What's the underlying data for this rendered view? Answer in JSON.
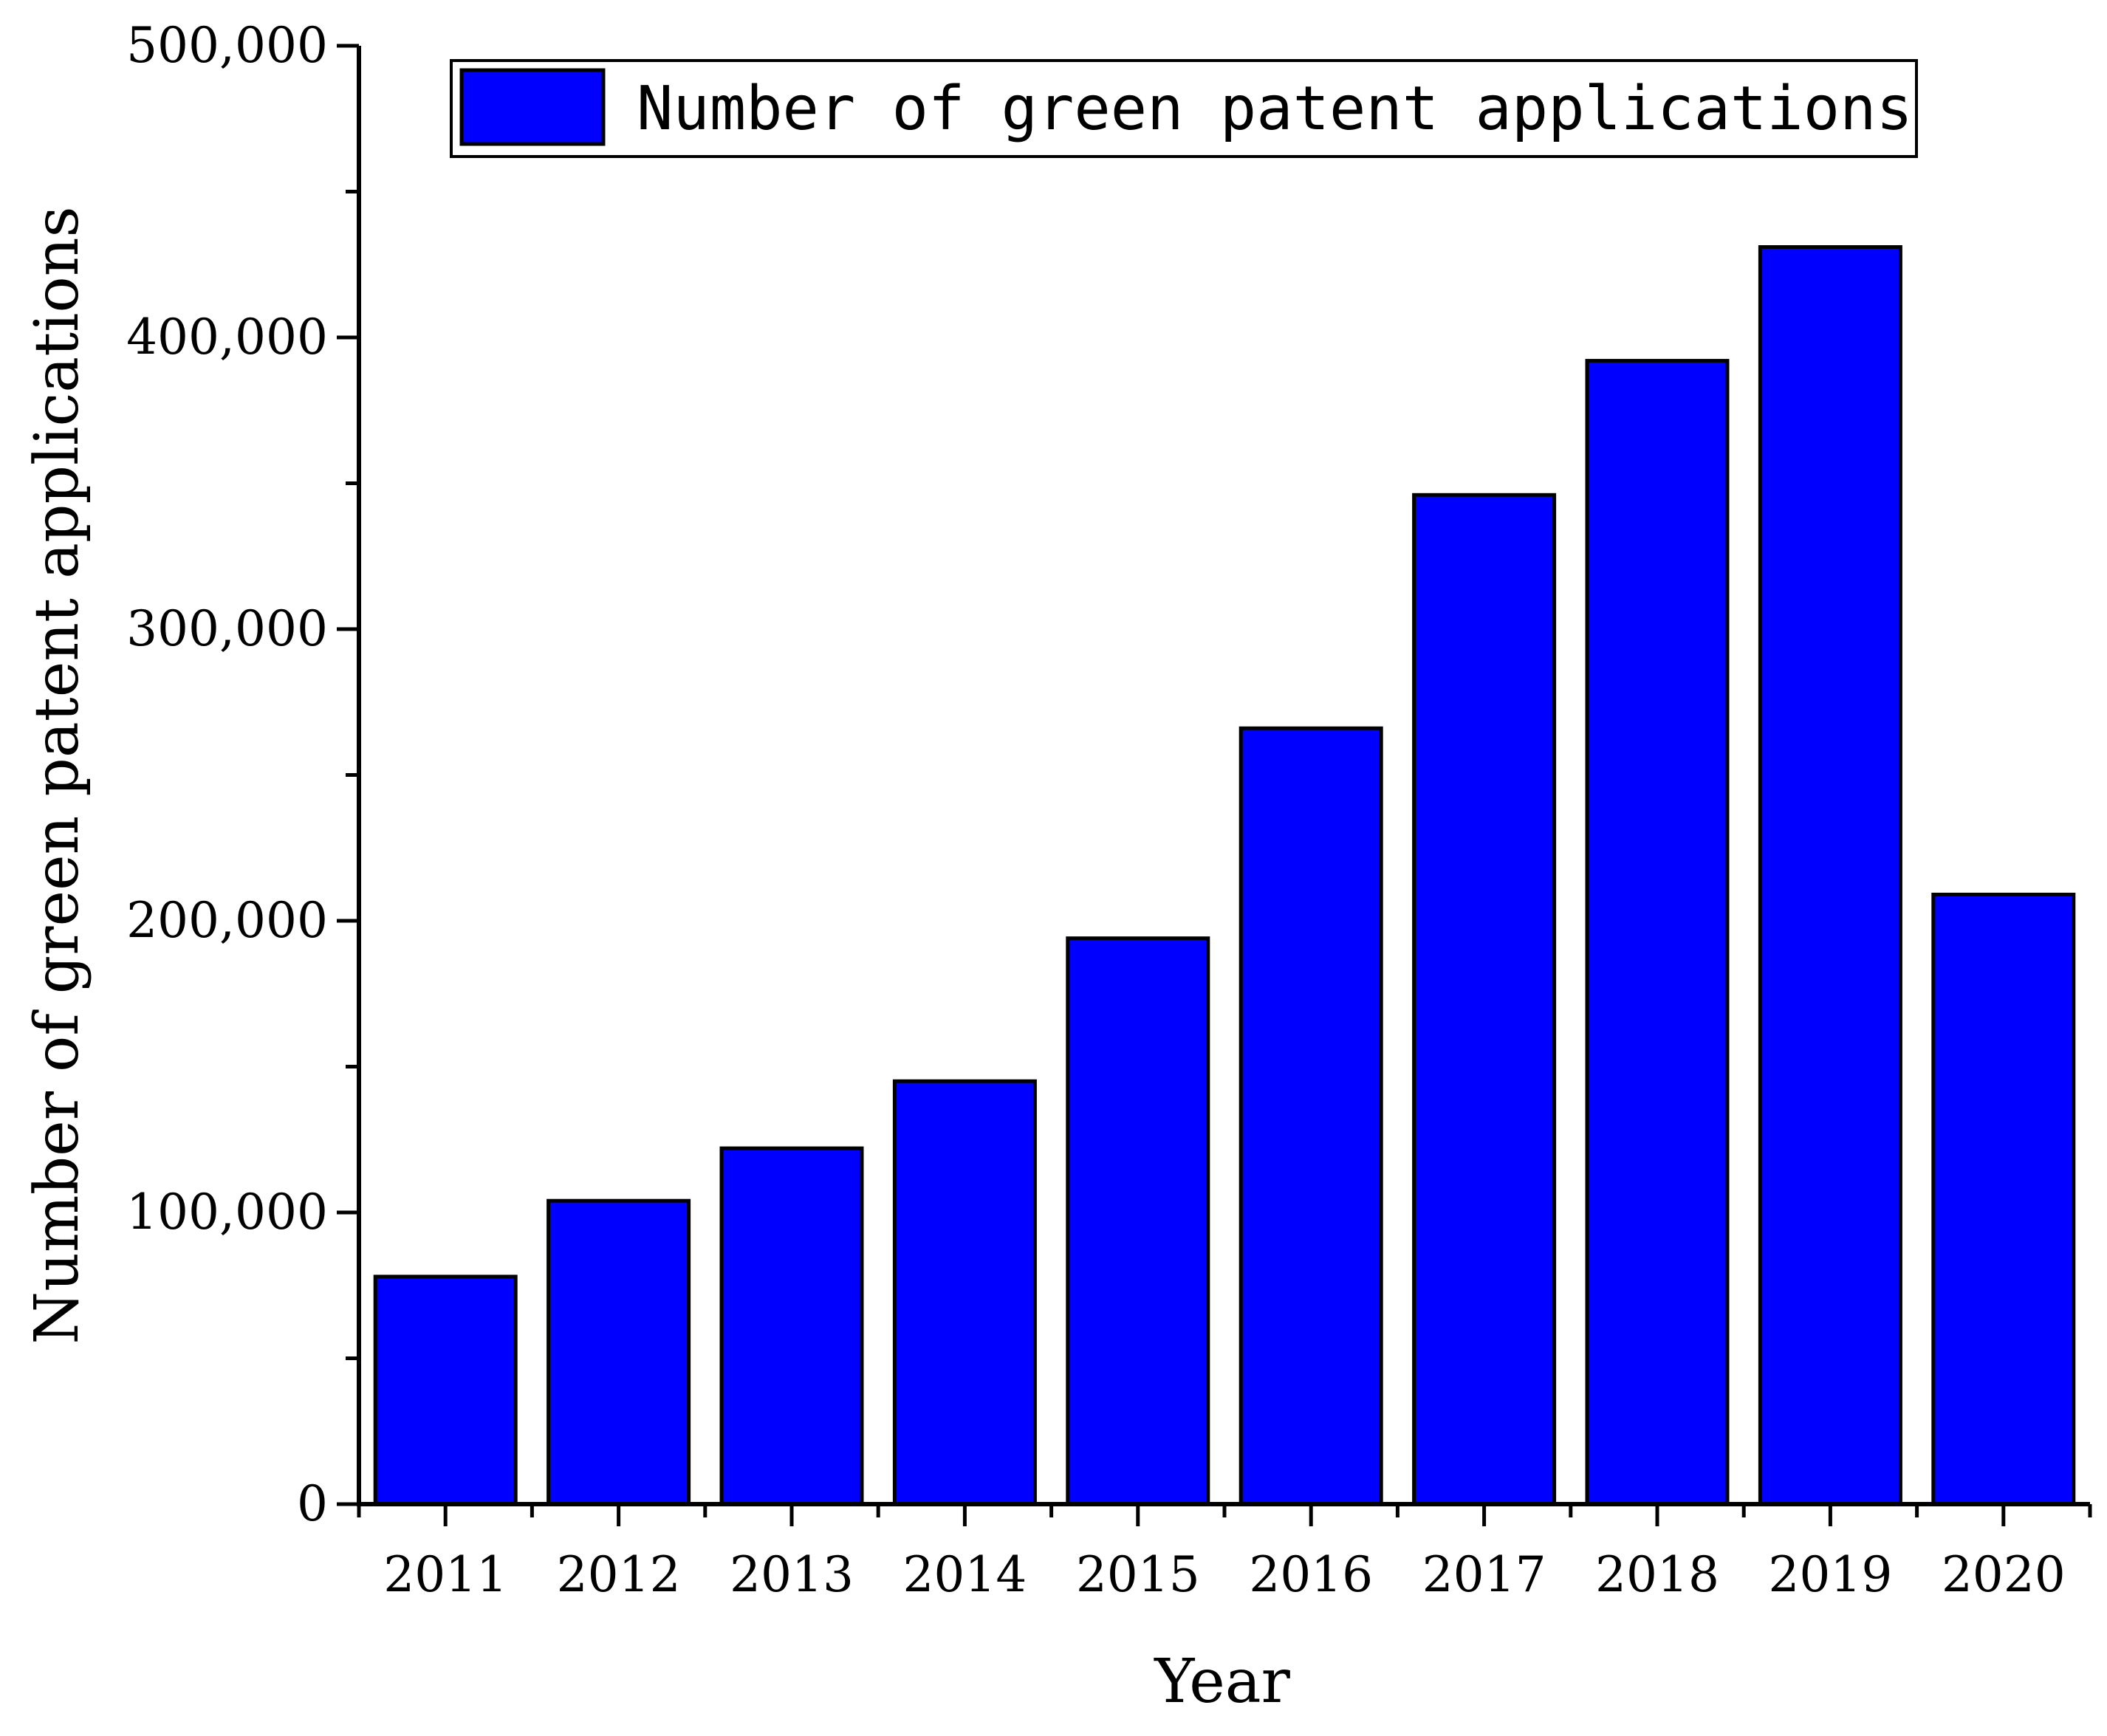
{
  "chart_data": {
    "type": "bar",
    "categories": [
      "2011",
      "2012",
      "2013",
      "2014",
      "2015",
      "2016",
      "2017",
      "2018",
      "2019",
      "2020"
    ],
    "series": [
      {
        "name": "Number of green patent applications",
        "values": [
          78000,
          104000,
          122000,
          145000,
          194000,
          266000,
          346000,
          392000,
          431000,
          209000
        ],
        "color": "#0000FF"
      }
    ],
    "title": "",
    "xlabel": "Year",
    "ylabel": "Number of green patent applications",
    "ylim": [
      0,
      500000
    ],
    "yticks": [
      0,
      100000,
      200000,
      300000,
      400000,
      500000
    ],
    "ytick_labels": [
      "0",
      "100,000",
      "200,000",
      "300,000",
      "400,000",
      "500,000"
    ],
    "legend_position": "top-center",
    "grid": false
  }
}
